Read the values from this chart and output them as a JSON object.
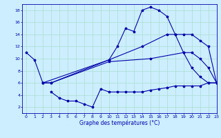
{
  "title": "Graphe des températures (°C)",
  "bg_color": "#cceeff",
  "line_color": "#0000aa",
  "grid_color": "#aaddcc",
  "xlim": [
    -0.5,
    23
  ],
  "ylim": [
    1,
    19
  ],
  "yticks": [
    2,
    4,
    6,
    8,
    10,
    12,
    14,
    16,
    18
  ],
  "xticks": [
    0,
    1,
    2,
    3,
    4,
    5,
    6,
    7,
    8,
    9,
    10,
    11,
    12,
    13,
    14,
    15,
    16,
    17,
    18,
    19,
    20,
    21,
    22,
    23
  ],
  "series1_x": [
    0,
    1,
    2,
    10,
    11,
    12,
    13,
    14,
    15,
    16,
    17,
    18,
    19,
    20,
    21,
    22,
    23
  ],
  "series1_y": [
    11,
    9.8,
    6,
    9.8,
    12,
    15,
    14.5,
    18,
    18.5,
    18,
    17,
    14,
    11,
    8.5,
    7,
    6,
    6
  ],
  "series2_x": [
    2,
    3,
    10,
    14,
    17,
    18,
    19,
    20,
    21,
    22,
    23
  ],
  "series2_y": [
    6,
    6,
    9.8,
    12,
    14,
    14,
    14,
    14,
    13,
    12,
    6
  ],
  "series3_x": [
    2,
    3,
    10,
    15,
    19,
    20,
    21,
    22,
    23
  ],
  "series3_y": [
    6,
    6,
    9.5,
    10,
    11,
    11,
    10,
    8.5,
    6
  ],
  "series4_x": [
    3,
    4,
    5,
    6,
    7,
    8,
    9,
    10,
    11,
    12,
    13,
    14,
    15,
    16,
    17,
    18,
    19,
    20,
    21,
    22,
    23
  ],
  "series4_y": [
    4.5,
    3.5,
    3.0,
    3.0,
    2.5,
    2.0,
    5.0,
    4.5,
    4.5,
    4.5,
    4.5,
    4.5,
    4.8,
    5.0,
    5.2,
    5.5,
    5.5,
    5.5,
    5.5,
    6.0,
    6.0
  ]
}
